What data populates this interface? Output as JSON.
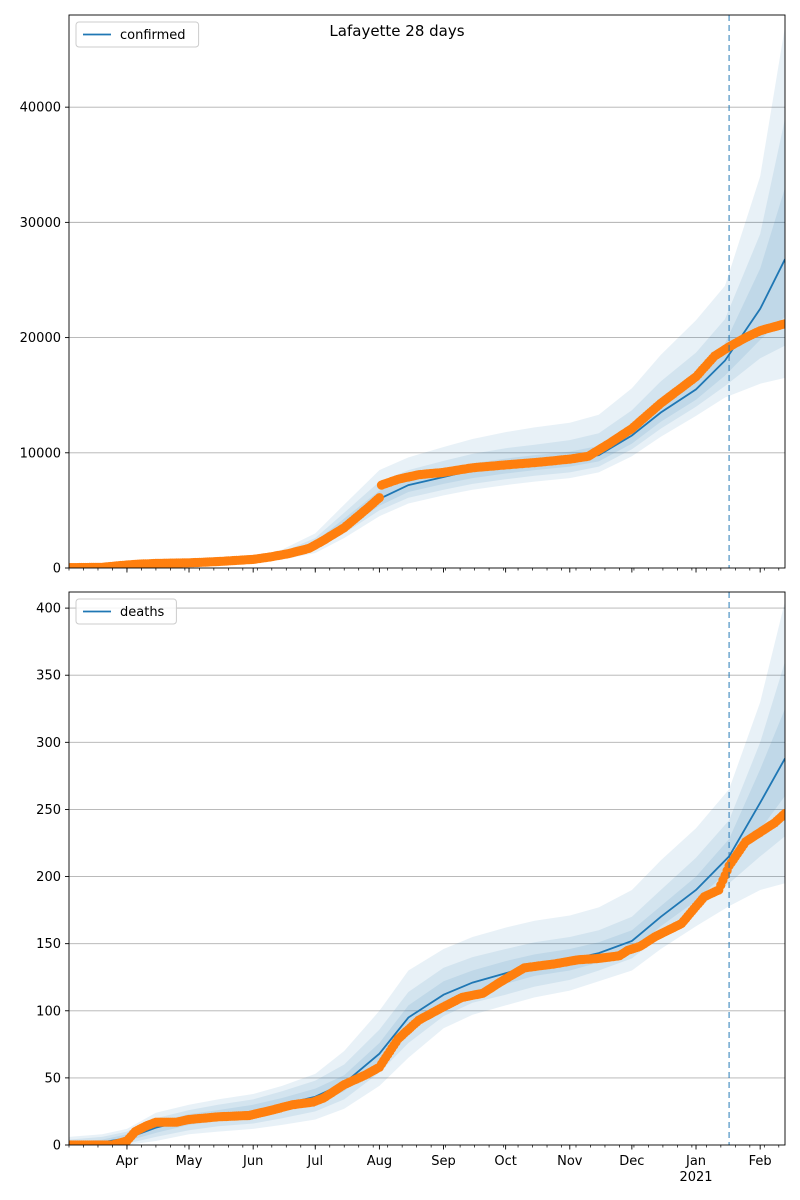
{
  "figure": {
    "title": "Lafayette 28 days"
  },
  "chart_data": [
    {
      "type": "line",
      "title": "",
      "legend": {
        "entries": [
          "confirmed"
        ],
        "placement": "top-left"
      },
      "xlabel": "",
      "ylabel": "",
      "x_start": "2020-03-04",
      "x_end": "2021-02-13",
      "forecast_marker": "2021-01-17",
      "ylim": [
        0,
        48000
      ],
      "yticks": [
        0,
        10000,
        20000,
        30000,
        40000
      ],
      "ytick_labels": [
        "0",
        "10000",
        "20000",
        "30000",
        "40000"
      ],
      "grid": "horizontal",
      "series": [
        {
          "name": "confirmed",
          "kind": "model",
          "x": [
            "2020-03-04",
            "2020-03-20",
            "2020-04-01",
            "2020-04-15",
            "2020-05-01",
            "2020-05-15",
            "2020-06-01",
            "2020-06-15",
            "2020-07-01",
            "2020-07-15",
            "2020-08-01",
            "2020-08-15",
            "2020-09-01",
            "2020-09-15",
            "2020-10-01",
            "2020-10-15",
            "2020-11-01",
            "2020-11-15",
            "2020-12-01",
            "2020-12-15",
            "2021-01-01",
            "2021-01-15",
            "2021-02-01",
            "2021-02-13"
          ],
          "values": [
            50,
            80,
            200,
            300,
            420,
            520,
            720,
            1100,
            2000,
            3800,
            6000,
            7200,
            7900,
            8500,
            8900,
            9100,
            9400,
            9800,
            11500,
            13500,
            15500,
            18000,
            22500,
            26800
          ],
          "bands": [
            {
              "lower": [
                0,
                0,
                100,
                180,
                260,
                330,
                470,
                720,
                1300,
                2600,
                4500,
                5600,
                6300,
                6800,
                7200,
                7500,
                7800,
                8300,
                9700,
                11400,
                13200,
                14800,
                16000,
                16500
              ],
              "upper": [
                100,
                200,
                350,
                500,
                650,
                780,
                1000,
                1600,
                3000,
                5500,
                8500,
                9600,
                10500,
                11200,
                11800,
                12200,
                12600,
                13300,
                15600,
                18500,
                21500,
                24500,
                34000,
                47000
              ]
            },
            {
              "lower": [
                20,
                30,
                130,
                220,
                310,
                390,
                560,
                850,
                1550,
                3000,
                5000,
                6100,
                6800,
                7300,
                7700,
                8000,
                8300,
                8800,
                10300,
                12100,
                14000,
                15800,
                18200,
                19300
              ],
              "upper": [
                80,
                150,
                290,
                420,
                550,
                660,
                870,
                1380,
                2600,
                4800,
                7500,
                8500,
                9300,
                9900,
                10400,
                10700,
                11100,
                11700,
                13700,
                16200,
                18700,
                21600,
                29000,
                39000
              ]
            },
            {
              "lower": [
                35,
                55,
                160,
                250,
                350,
                440,
                620,
                950,
                1720,
                3300,
                5400,
                6600,
                7300,
                7800,
                8200,
                8500,
                8800,
                9250,
                10800,
                12700,
                14600,
                16700,
                19800,
                21800
              ],
              "upper": [
                65,
                110,
                250,
                360,
                480,
                590,
                800,
                1240,
                2300,
                4300,
                6700,
                7800,
                8500,
                9100,
                9500,
                9800,
                10100,
                10600,
                12400,
                14600,
                16700,
                19500,
                26000,
                33000
              ]
            }
          ]
        },
        {
          "name": "",
          "kind": "observed",
          "x": [
            "2020-03-04",
            "2020-03-20",
            "2020-03-28",
            "2020-04-05",
            "2020-04-15",
            "2020-05-01",
            "2020-05-15",
            "2020-06-01",
            "2020-06-10",
            "2020-06-18",
            "2020-06-28",
            "2020-07-05",
            "2020-07-15",
            "2020-07-25",
            "2020-08-01",
            "2020-08-02",
            "2020-08-10",
            "2020-08-20",
            "2020-09-01",
            "2020-09-15",
            "2020-10-01",
            "2020-10-15",
            "2020-11-01",
            "2020-11-10",
            "2020-11-20",
            "2020-12-01",
            "2020-12-15",
            "2021-01-01",
            "2021-01-10",
            "2021-01-17",
            "2021-01-25",
            "2021-02-01",
            "2021-02-13"
          ],
          "values": [
            30,
            60,
            200,
            320,
            400,
            450,
            560,
            750,
            980,
            1250,
            1700,
            2400,
            3500,
            5000,
            6100,
            7200,
            7700,
            8100,
            8300,
            8700,
            8950,
            9150,
            9450,
            9700,
            10800,
            12100,
            14300,
            16600,
            18400,
            19200,
            20000,
            20600,
            21200
          ]
        }
      ]
    },
    {
      "type": "line",
      "title": "",
      "legend": {
        "entries": [
          "deaths"
        ],
        "placement": "top-left"
      },
      "xlabel": "",
      "ylabel": "",
      "x_start": "2020-03-04",
      "x_end": "2021-02-13",
      "forecast_marker": "2021-01-17",
      "ylim": [
        0,
        412
      ],
      "yticks": [
        0,
        50,
        100,
        150,
        200,
        250,
        300,
        350,
        400
      ],
      "ytick_labels": [
        "0",
        "50",
        "100",
        "150",
        "200",
        "250",
        "300",
        "350",
        "400"
      ],
      "xticks": [
        "2020-04-01",
        "2020-05-01",
        "2020-06-01",
        "2020-07-01",
        "2020-08-01",
        "2020-09-01",
        "2020-10-01",
        "2020-11-01",
        "2020-12-01",
        "2021-01-01",
        "2021-02-01"
      ],
      "xtick_labels": [
        "Apr",
        "May",
        "Jun",
        "Jul",
        "Aug",
        "Sep",
        "Oct",
        "Nov",
        "Dec",
        "Jan",
        "Feb"
      ],
      "xtick_sublabels": [
        "",
        "",
        "",
        "",
        "",
        "",
        "",
        "",
        "",
        "2021",
        ""
      ],
      "grid": "horizontal",
      "series": [
        {
          "name": "deaths",
          "kind": "model",
          "x": [
            "2020-03-04",
            "2020-03-20",
            "2020-04-01",
            "2020-04-15",
            "2020-05-01",
            "2020-05-15",
            "2020-06-01",
            "2020-06-15",
            "2020-07-01",
            "2020-07-15",
            "2020-08-01",
            "2020-08-15",
            "2020-09-01",
            "2020-09-15",
            "2020-10-01",
            "2020-10-15",
            "2020-11-01",
            "2020-11-15",
            "2020-12-01",
            "2020-12-15",
            "2021-01-01",
            "2021-01-17",
            "2021-02-01",
            "2021-02-13"
          ],
          "values": [
            1,
            2,
            5,
            13,
            19,
            22,
            25,
            30,
            36,
            46,
            68,
            95,
            112,
            121,
            128,
            134,
            138,
            143,
            152,
            170,
            190,
            215,
            255,
            288
          ],
          "bands": [
            {
              "lower": [
                0,
                0,
                0,
                3,
                8,
                10,
                12,
                15,
                19,
                27,
                44,
                65,
                87,
                97,
                104,
                110,
                115,
                122,
                130,
                146,
                163,
                178,
                190,
                195
              ],
              "upper": [
                6,
                8,
                12,
                24,
                30,
                34,
                38,
                44,
                53,
                70,
                100,
                130,
                146,
                155,
                162,
                167,
                171,
                177,
                190,
                212,
                236,
                265,
                330,
                405
              ]
            },
            {
              "lower": [
                0,
                0,
                1,
                6,
                11,
                14,
                16,
                20,
                25,
                34,
                54,
                76,
                96,
                106,
                112,
                118,
                123,
                130,
                139,
                156,
                175,
                195,
                215,
                230
              ],
              "upper": [
                4,
                6,
                10,
                20,
                26,
                30,
                34,
                40,
                48,
                60,
                86,
                114,
                132,
                140,
                146,
                151,
                155,
                160,
                170,
                190,
                214,
                242,
                300,
                360
              ]
            },
            {
              "lower": [
                0,
                1,
                3,
                9,
                15,
                18,
                20,
                25,
                30,
                40,
                62,
                86,
                104,
                114,
                120,
                126,
                130,
                136,
                145,
                163,
                182,
                205,
                235,
                260
              ],
              "upper": [
                2,
                4,
                8,
                17,
                23,
                26,
                30,
                35,
                42,
                52,
                76,
                104,
                122,
                130,
                137,
                142,
                146,
                151,
                160,
                178,
                200,
                228,
                280,
                325
              ]
            }
          ]
        },
        {
          "name": "",
          "kind": "observed",
          "x": [
            "2020-03-04",
            "2020-03-25",
            "2020-04-01",
            "2020-04-05",
            "2020-04-10",
            "2020-04-15",
            "2020-04-25",
            "2020-05-01",
            "2020-05-15",
            "2020-05-30",
            "2020-06-10",
            "2020-06-20",
            "2020-06-30",
            "2020-07-05",
            "2020-07-15",
            "2020-07-25",
            "2020-08-01",
            "2020-08-10",
            "2020-08-20",
            "2020-09-01",
            "2020-09-10",
            "2020-09-20",
            "2020-09-28",
            "2020-10-10",
            "2020-10-25",
            "2020-11-05",
            "2020-11-15",
            "2020-11-25",
            "2020-11-29",
            "2020-12-05",
            "2020-12-12",
            "2020-12-25",
            "2021-01-05",
            "2021-01-12",
            "2021-01-17",
            "2021-01-25",
            "2021-02-01",
            "2021-02-08",
            "2021-02-13"
          ],
          "values": [
            0,
            0,
            3,
            10,
            14,
            17,
            17,
            19,
            21,
            22,
            26,
            30,
            32,
            35,
            45,
            52,
            58,
            79,
            93,
            103,
            110,
            113,
            121,
            132,
            135,
            138,
            139,
            141,
            145,
            148,
            155,
            165,
            185,
            190,
            208,
            226,
            233,
            240,
            247
          ]
        }
      ]
    }
  ]
}
